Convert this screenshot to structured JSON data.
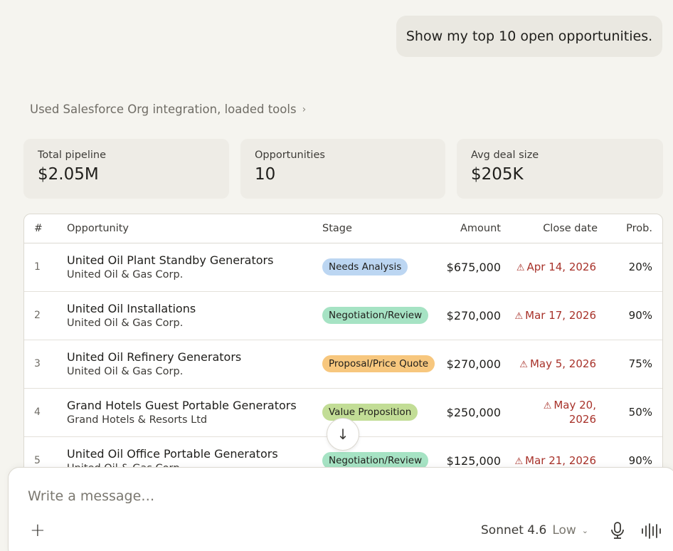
{
  "user_message": "Show my top 10 open opportunities.",
  "tool_status": "Used Salesforce Org integration, loaded tools",
  "stats": [
    {
      "label": "Total pipeline",
      "value": "$2.05M"
    },
    {
      "label": "Opportunities",
      "value": "10"
    },
    {
      "label": "Avg deal size",
      "value": "$205K"
    }
  ],
  "table": {
    "headers": {
      "num": "#",
      "opportunity": "Opportunity",
      "stage": "Stage",
      "amount": "Amount",
      "close": "Close date",
      "prob": "Prob."
    },
    "rows": [
      {
        "num": "1",
        "name": "United Oil Plant Standby Generators",
        "account": "United Oil & Gas Corp.",
        "stage": "Needs Analysis",
        "stage_color": "#bcd6f2",
        "amount": "$675,000",
        "close": "Apr 14, 2026",
        "prob": "20%"
      },
      {
        "num": "2",
        "name": "United Oil Installations",
        "account": "United Oil & Gas Corp.",
        "stage": "Negotiation/Review",
        "stage_color": "#a6e3c4",
        "amount": "$270,000",
        "close": "Mar 17, 2026",
        "prob": "90%"
      },
      {
        "num": "3",
        "name": "United Oil Refinery Generators",
        "account": "United Oil & Gas Corp.",
        "stage": "Proposal/Price Quote",
        "stage_color": "#f7c77e",
        "amount": "$270,000",
        "close": "May 5, 2026",
        "prob": "75%"
      },
      {
        "num": "4",
        "name": "Grand Hotels Guest Portable Generators",
        "account": "Grand Hotels & Resorts Ltd",
        "stage": "Value Proposition",
        "stage_color": "#c2dd96",
        "amount": "$250,000",
        "close_line1": "May 20,",
        "close_line2": "2026",
        "prob": "50%"
      },
      {
        "num": "5",
        "name": "United Oil Office Portable Generators",
        "account": "United Oil & Gas Corp.",
        "stage": "Negotiation/Review",
        "stage_color": "#a6e3c4",
        "amount": "$125,000",
        "close": "Mar 21, 2026",
        "prob": "90%"
      }
    ],
    "warning_icon": "⚠"
  },
  "composer": {
    "placeholder": "Write a message…",
    "model": "Sonnet 4.6",
    "effort": "Low"
  }
}
